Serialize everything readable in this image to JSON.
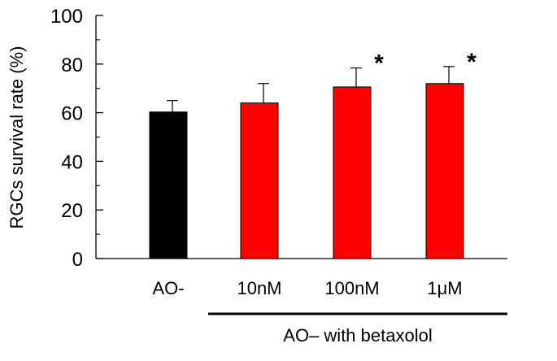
{
  "chart_data": {
    "type": "bar",
    "categories": [
      "AO-",
      "10nM",
      "100nM",
      "1μM"
    ],
    "values": [
      60.3,
      64.0,
      70.6,
      72.0
    ],
    "error_upper": [
      65.0,
      72.0,
      78.4,
      79.0
    ],
    "bar_colors": [
      "#000000",
      "#ff0000",
      "#ff0000",
      "#ff0000"
    ],
    "significance": [
      "",
      "",
      "*",
      "*"
    ],
    "ylabel": "RGCs survival rate (%)",
    "ylim": [
      0,
      100
    ],
    "yticks": [
      0,
      20,
      40,
      60,
      80,
      100
    ],
    "group_label": "AO– with betaxolol",
    "group_members": [
      "10nM",
      "100nM",
      "1μM"
    ],
    "grid": false
  }
}
